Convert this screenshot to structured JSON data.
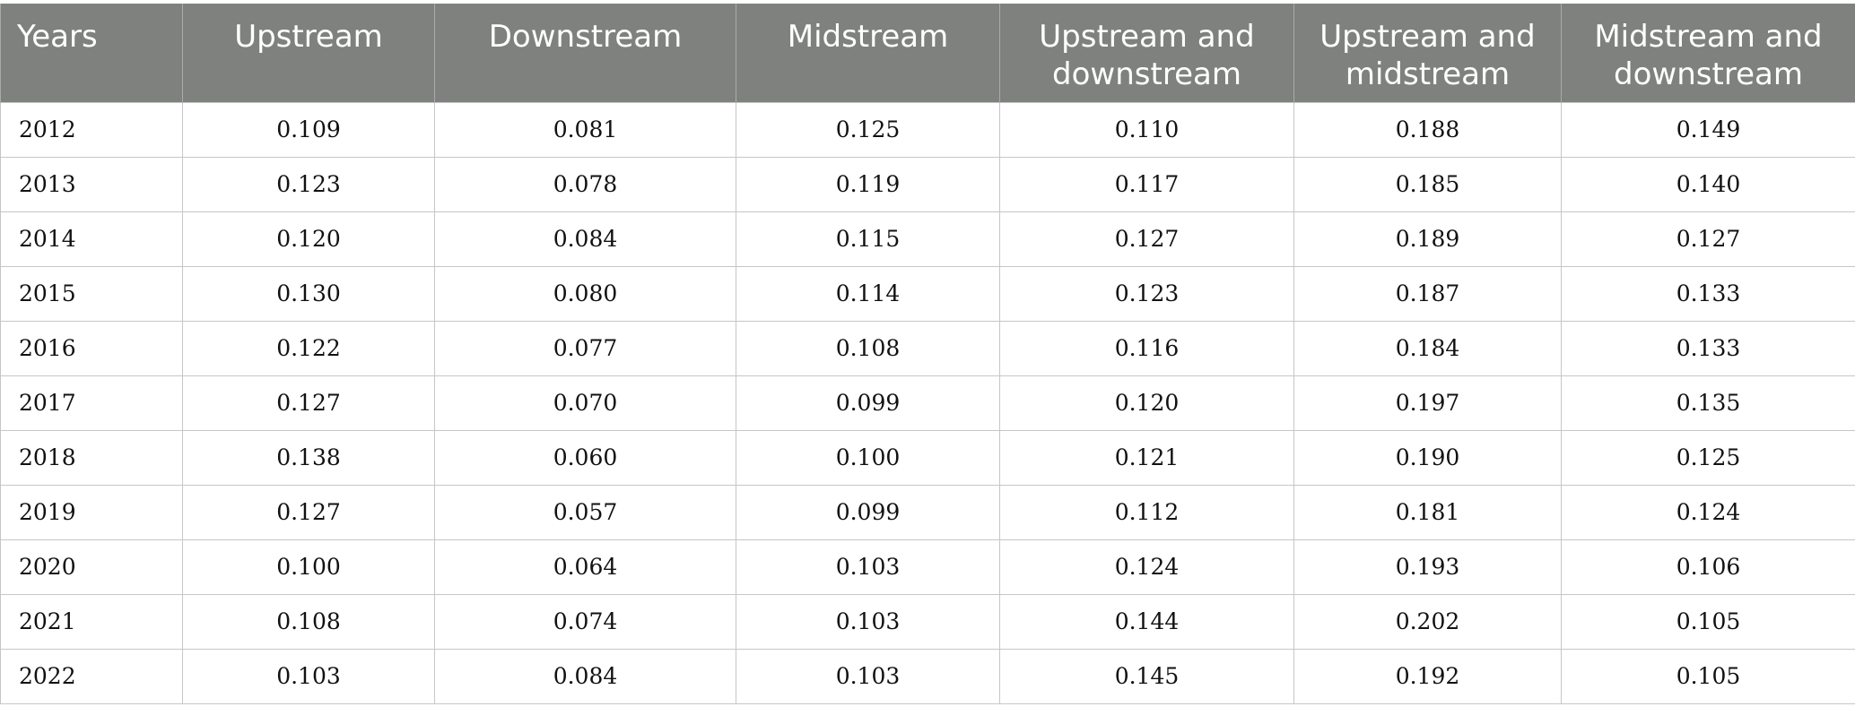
{
  "table": {
    "headers": [
      "Years",
      "Upstream",
      "Downstream",
      "Midstream",
      "Upstream and downstream",
      "Upstream and midstream",
      "Midstream and downstream"
    ],
    "rows": [
      [
        "2012",
        "0.109",
        "0.081",
        "0.125",
        "0.110",
        "0.188",
        "0.149"
      ],
      [
        "2013",
        "0.123",
        "0.078",
        "0.119",
        "0.117",
        "0.185",
        "0.140"
      ],
      [
        "2014",
        "0.120",
        "0.084",
        "0.115",
        "0.127",
        "0.189",
        "0.127"
      ],
      [
        "2015",
        "0.130",
        "0.080",
        "0.114",
        "0.123",
        "0.187",
        "0.133"
      ],
      [
        "2016",
        "0.122",
        "0.077",
        "0.108",
        "0.116",
        "0.184",
        "0.133"
      ],
      [
        "2017",
        "0.127",
        "0.070",
        "0.099",
        "0.120",
        "0.197",
        "0.135"
      ],
      [
        "2018",
        "0.138",
        "0.060",
        "0.100",
        "0.121",
        "0.190",
        "0.125"
      ],
      [
        "2019",
        "0.127",
        "0.057",
        "0.099",
        "0.112",
        "0.181",
        "0.124"
      ],
      [
        "2020",
        "0.100",
        "0.064",
        "0.103",
        "0.124",
        "0.193",
        "0.106"
      ],
      [
        "2021",
        "0.108",
        "0.074",
        "0.103",
        "0.144",
        "0.202",
        "0.105"
      ],
      [
        "2022",
        "0.103",
        "0.084",
        "0.103",
        "0.145",
        "0.192",
        "0.105"
      ]
    ]
  },
  "colors": {
    "header_background": "#7f817f",
    "header_text": "#ffffff",
    "grid_line": "#c6c6c6"
  }
}
